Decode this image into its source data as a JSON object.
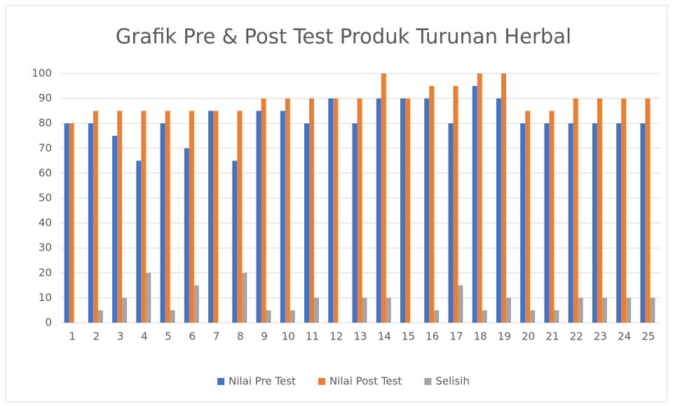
{
  "chart_data": {
    "type": "bar",
    "title": "Grafik Pre & Post Test Produk Turunan Herbal",
    "categories": [
      "1",
      "2",
      "3",
      "4",
      "5",
      "6",
      "7",
      "8",
      "9",
      "10",
      "11",
      "12",
      "13",
      "14",
      "15",
      "16",
      "17",
      "18",
      "19",
      "20",
      "21",
      "22",
      "23",
      "24",
      "25"
    ],
    "series": [
      {
        "name": "Nilai Pre Test",
        "color": "#4472c4",
        "values": [
          80,
          80,
          75,
          65,
          80,
          70,
          85,
          65,
          85,
          85,
          80,
          90,
          80,
          90,
          90,
          90,
          80,
          95,
          90,
          80,
          80,
          80,
          80,
          80,
          80
        ]
      },
      {
        "name": "Nilai Post Test",
        "color": "#ed7d31",
        "values": [
          80,
          85,
          85,
          85,
          85,
          85,
          85,
          85,
          90,
          90,
          90,
          90,
          90,
          100,
          90,
          95,
          95,
          100,
          100,
          85,
          85,
          90,
          90,
          90,
          90
        ]
      },
      {
        "name": "Selisih",
        "color": "#a5a5a5",
        "values": [
          0,
          5,
          10,
          20,
          5,
          15,
          0,
          20,
          5,
          5,
          10,
          0,
          10,
          10,
          0,
          5,
          15,
          5,
          10,
          5,
          5,
          10,
          10,
          10,
          10
        ]
      }
    ],
    "ylim": [
      0,
      100
    ],
    "yticks": [
      0,
      10,
      20,
      30,
      40,
      50,
      60,
      70,
      80,
      90,
      100
    ],
    "grid": true,
    "legend": "bottom"
  }
}
